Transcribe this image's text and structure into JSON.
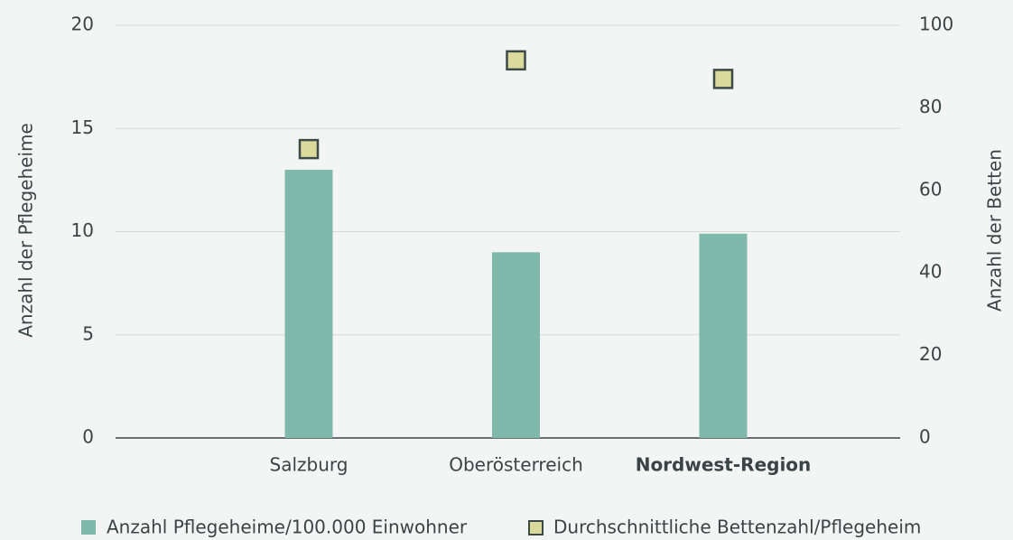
{
  "chart_data": {
    "type": "bar",
    "categories": [
      "Salzburg",
      "Oberösterreich",
      "Nordwest-Region"
    ],
    "bold_categories": [
      2
    ],
    "y_label": "Anzahl der Pflegeheime",
    "y2_label": "Anzahl der Betten",
    "ylim": [
      0,
      20
    ],
    "yticks": [
      0,
      5,
      10,
      15,
      20
    ],
    "y2lim": [
      0,
      100
    ],
    "y2ticks": [
      0,
      20,
      40,
      60,
      80,
      100
    ],
    "grid": true,
    "series": [
      {
        "name": "Anzahl Pflegeheime/100.000 Einwohner",
        "type": "bar",
        "color": "#7fb9ab",
        "values": [
          13,
          9,
          9.9
        ]
      },
      {
        "name": "Durchschnittliche Bettenzahl/Pflegeheim",
        "type": "scatter",
        "axis": "y2",
        "color": "#dcd99d",
        "values": [
          70,
          91.5,
          87
        ]
      }
    ]
  }
}
